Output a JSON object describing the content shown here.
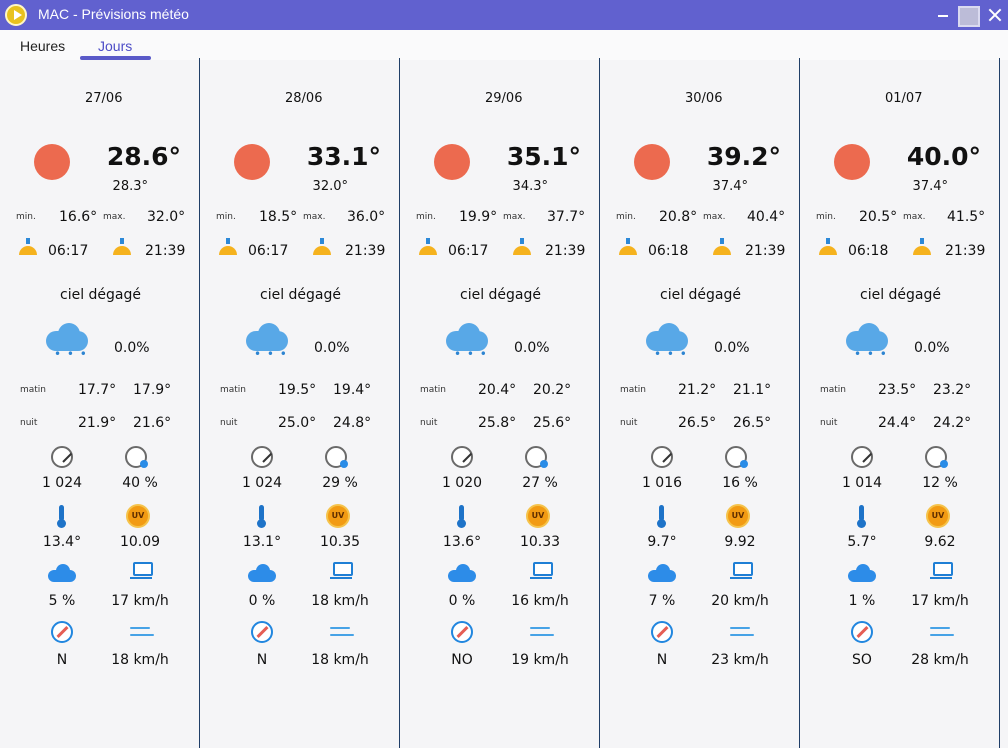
{
  "window": {
    "title": "MAC - Prévisions météo"
  },
  "tabs": [
    {
      "label": "Heures"
    },
    {
      "label": "Jours"
    }
  ],
  "labels": {
    "min": "min.",
    "max": "max.",
    "matin": "matin",
    "nuit": "nuit"
  },
  "days": [
    {
      "date": "27/06",
      "temp": "28.6°",
      "feels": "28.3°",
      "min": "16.6°",
      "max": "32.0°",
      "sunrise": "06:17",
      "sunset": "21:39",
      "condition": "ciel dégagé",
      "precip": "0.0%",
      "matin_1": "17.7°",
      "matin_2": "17.9°",
      "nuit_1": "21.9°",
      "nuit_2": "21.6°",
      "pressure": "1 024",
      "humidity": "40 %",
      "dew": "13.4°",
      "uv": "10.09",
      "cloud": "5 %",
      "visibility": "17 km/h",
      "wind_dir": "N",
      "wind_speed": "18 km/h"
    },
    {
      "date": "28/06",
      "temp": "33.1°",
      "feels": "32.0°",
      "min": "18.5°",
      "max": "36.0°",
      "sunrise": "06:17",
      "sunset": "21:39",
      "condition": "ciel dégagé",
      "precip": "0.0%",
      "matin_1": "19.5°",
      "matin_2": "19.4°",
      "nuit_1": "25.0°",
      "nuit_2": "24.8°",
      "pressure": "1 024",
      "humidity": "29 %",
      "dew": "13.1°",
      "uv": "10.35",
      "cloud": "0 %",
      "visibility": "18 km/h",
      "wind_dir": "N",
      "wind_speed": "18 km/h"
    },
    {
      "date": "29/06",
      "temp": "35.1°",
      "feels": "34.3°",
      "min": "19.9°",
      "max": "37.7°",
      "sunrise": "06:17",
      "sunset": "21:39",
      "condition": "ciel dégagé",
      "precip": "0.0%",
      "matin_1": "20.4°",
      "matin_2": "20.2°",
      "nuit_1": "25.8°",
      "nuit_2": "25.6°",
      "pressure": "1 020",
      "humidity": "27 %",
      "dew": "13.6°",
      "uv": "10.33",
      "cloud": "0 %",
      "visibility": "16 km/h",
      "wind_dir": "NO",
      "wind_speed": "19 km/h"
    },
    {
      "date": "30/06",
      "temp": "39.2°",
      "feels": "37.4°",
      "min": "20.8°",
      "max": "40.4°",
      "sunrise": "06:18",
      "sunset": "21:39",
      "condition": "ciel dégagé",
      "precip": "0.0%",
      "matin_1": "21.2°",
      "matin_2": "21.1°",
      "nuit_1": "26.5°",
      "nuit_2": "26.5°",
      "pressure": "1 016",
      "humidity": "16 %",
      "dew": "9.7°",
      "uv": "9.92",
      "cloud": "7 %",
      "visibility": "20 km/h",
      "wind_dir": "N",
      "wind_speed": "23 km/h"
    },
    {
      "date": "01/07",
      "temp": "40.0°",
      "feels": "37.4°",
      "min": "20.5°",
      "max": "41.5°",
      "sunrise": "06:18",
      "sunset": "21:39",
      "condition": "ciel dégagé",
      "precip": "0.0%",
      "matin_1": "23.5°",
      "matin_2": "23.2°",
      "nuit_1": "24.4°",
      "nuit_2": "24.2°",
      "pressure": "1 014",
      "humidity": "12 %",
      "dew": "5.7°",
      "uv": "9.62",
      "cloud": "1 %",
      "visibility": "17 km/h",
      "wind_dir": "SO",
      "wind_speed": "28 km/h"
    }
  ],
  "icons": {
    "app": "app-play-icon",
    "sun": "sun-icon",
    "sunrise": "sunrise-icon",
    "sunset": "sunset-icon",
    "cloud_rain": "cloud-rain-icon",
    "pressure": "gauge-icon",
    "humidity": "pressure-humidity-icon",
    "dew": "thermometer-icon",
    "uv": "uv-icon",
    "cloud": "cloud-icon",
    "visibility": "visibility-icon",
    "wind_dir": "compass-icon",
    "wind": "wind-icon"
  },
  "colors": {
    "titlebar": "#6161cf",
    "sun": "#ec6a4f",
    "accent": "#5a5ac8",
    "divider": "#1f3e67"
  }
}
